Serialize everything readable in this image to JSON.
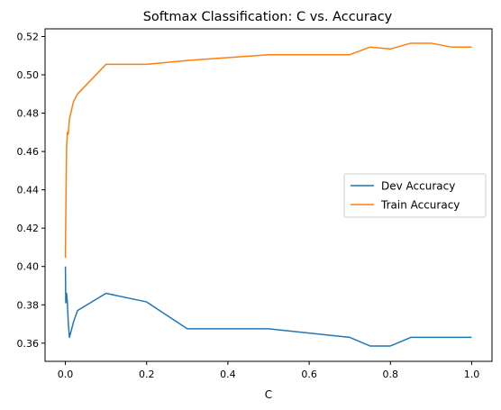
{
  "chart_data": {
    "type": "line",
    "title": "Softmax Classification: C vs. Accuracy",
    "xlabel": "C",
    "ylabel": "",
    "xlim": [
      -0.05,
      1.05
    ],
    "ylim": [
      0.3505,
      0.524
    ],
    "xticks": [
      0.0,
      0.2,
      0.4,
      0.6,
      0.8,
      1.0
    ],
    "xtick_labels": [
      "0.0",
      "0.2",
      "0.4",
      "0.6",
      "0.8",
      "1.0"
    ],
    "yticks": [
      0.36,
      0.38,
      0.4,
      0.42,
      0.44,
      0.46,
      0.48,
      0.5,
      0.52
    ],
    "ytick_labels": [
      "0.36",
      "0.38",
      "0.40",
      "0.42",
      "0.44",
      "0.46",
      "0.48",
      "0.50",
      "0.52"
    ],
    "grid": false,
    "legend_position": "center-right",
    "series": [
      {
        "name": "Dev Accuracy",
        "color": "#1f77b4",
        "x": [
          0.0001,
          0.001,
          0.003,
          0.005,
          0.007,
          0.01,
          0.02,
          0.03,
          0.1,
          0.2,
          0.3,
          0.5,
          0.7,
          0.75,
          0.8,
          0.85,
          0.9,
          0.95,
          1.0
        ],
        "y": [
          0.4,
          0.381,
          0.386,
          0.381,
          0.371,
          0.363,
          0.371,
          0.377,
          0.386,
          0.3815,
          0.3675,
          0.3675,
          0.363,
          0.3585,
          0.3585,
          0.363,
          0.363,
          0.363,
          0.363
        ]
      },
      {
        "name": "Train Accuracy",
        "color": "#ff7f0e",
        "x": [
          0.0001,
          0.001,
          0.003,
          0.005,
          0.007,
          0.01,
          0.02,
          0.03,
          0.1,
          0.2,
          0.3,
          0.5,
          0.7,
          0.75,
          0.8,
          0.85,
          0.9,
          0.95,
          1.0
        ],
        "y": [
          0.4045,
          0.427,
          0.462,
          0.47,
          0.469,
          0.477,
          0.486,
          0.49,
          0.5055,
          0.5055,
          0.5075,
          0.5105,
          0.5105,
          0.5145,
          0.5135,
          0.5165,
          0.5165,
          0.5145,
          0.5145
        ]
      }
    ]
  }
}
